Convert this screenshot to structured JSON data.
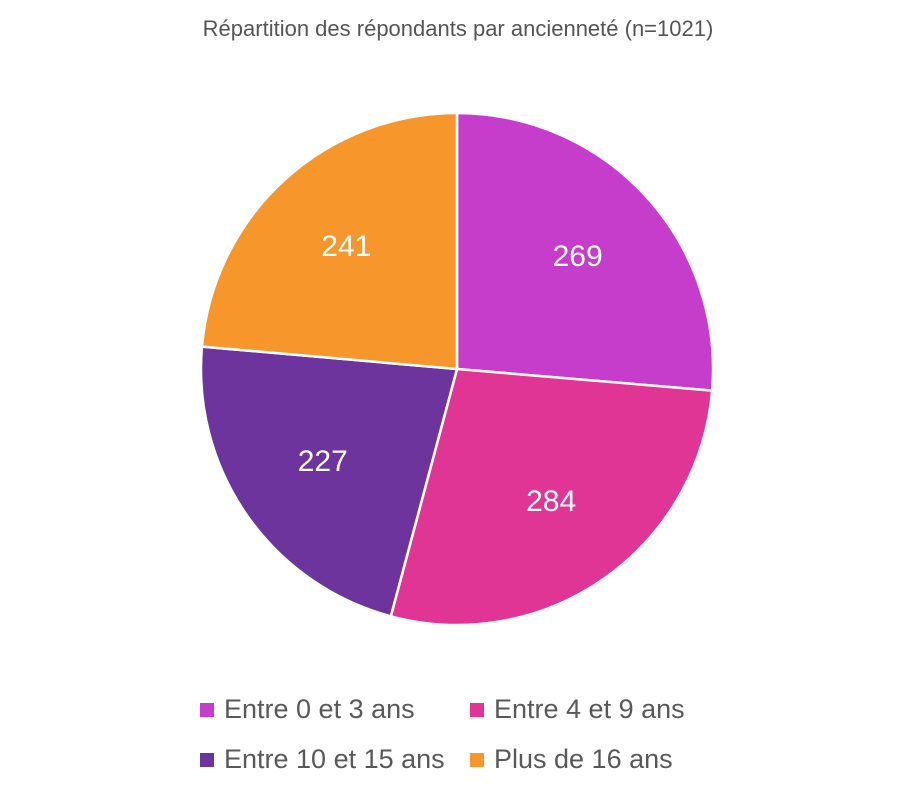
{
  "chart_data": {
    "type": "pie",
    "title": "Répartition des répondants par ancienneté (n=1021)",
    "categories": [
      "Entre 0 et 3 ans",
      "Entre 4 et 9 ans",
      "Entre 10 et 15 ans",
      "Plus de 16 ans"
    ],
    "values": [
      269,
      284,
      227,
      241
    ],
    "colors": [
      "#C63CCB",
      "#E03594",
      "#6E349D",
      "#F7962A"
    ],
    "data_labels": [
      "269",
      "284",
      "227",
      "241"
    ],
    "legend": "bottom"
  }
}
